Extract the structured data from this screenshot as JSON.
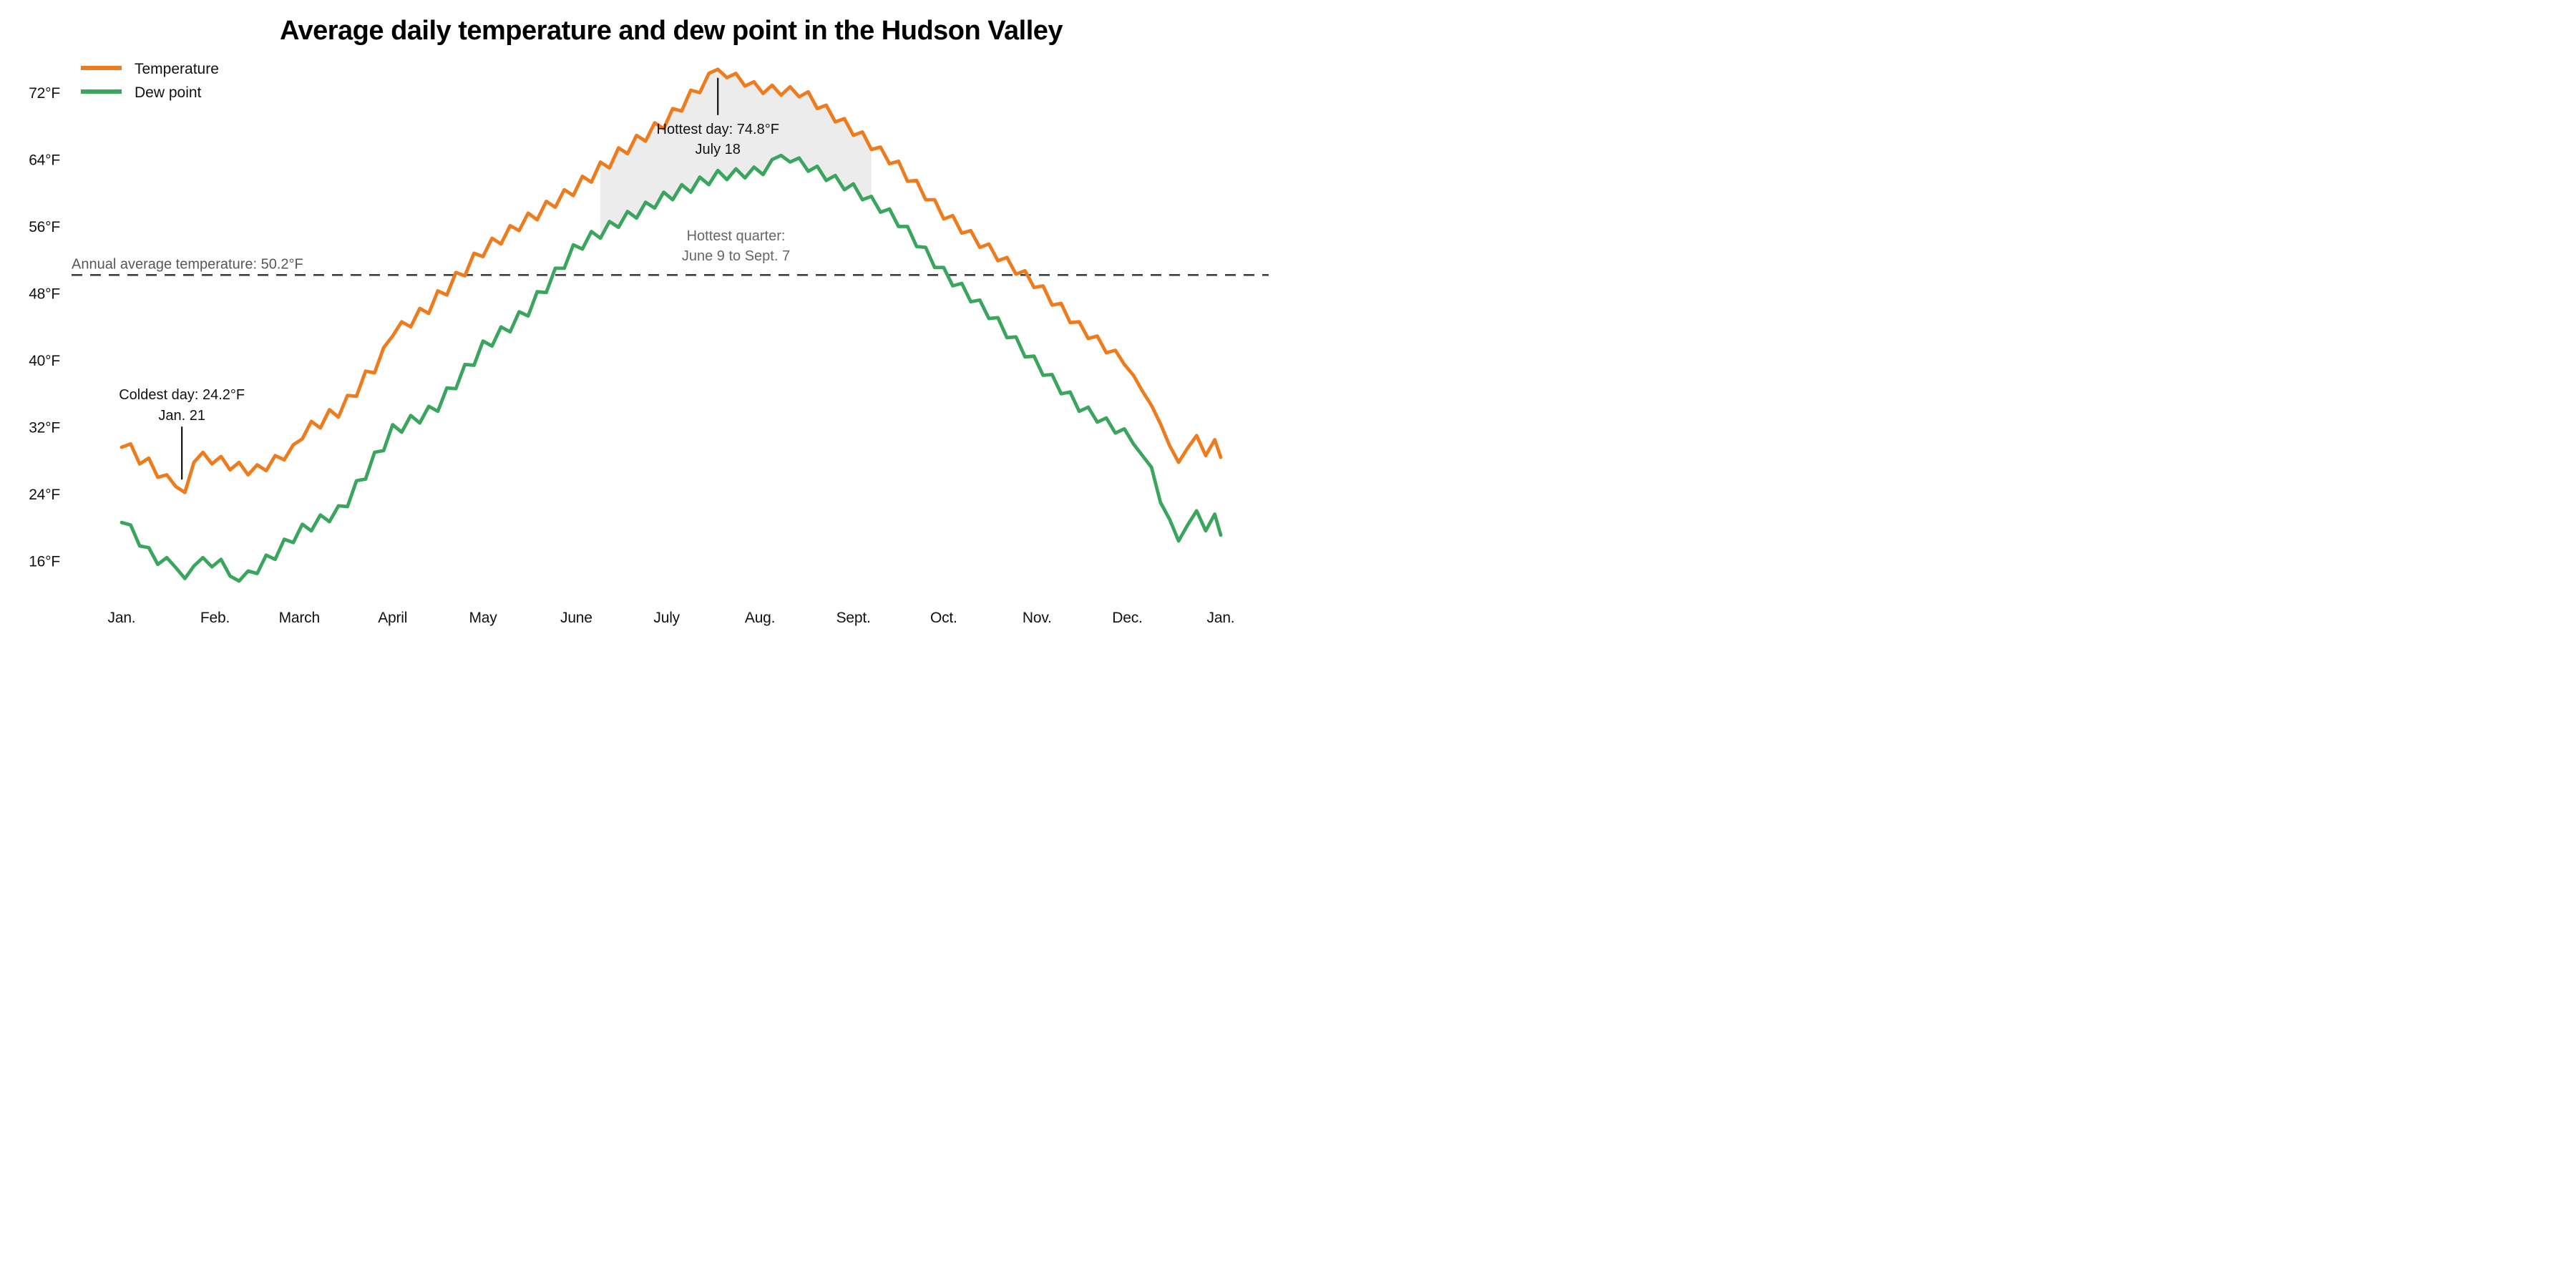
{
  "title": "Average daily temperature and dew point in the Hudson Valley",
  "legend": {
    "temperature": {
      "label": "Temperature",
      "color": "#ee7c1e"
    },
    "dew_point": {
      "label": "Dew point",
      "color": "#3aa55c"
    }
  },
  "colors": {
    "temperature": "#ee7c1e",
    "dew_point": "#3aa55c",
    "shading": "#ececec",
    "average_line": "#3f3f3f",
    "callout_line": "#111111",
    "axis_text": "#111111",
    "gray_text": "#666666"
  },
  "y_axis": {
    "ticks": [
      {
        "value": 16,
        "label": "16°F"
      },
      {
        "value": 24,
        "label": "24°F"
      },
      {
        "value": 32,
        "label": "32°F"
      },
      {
        "value": 40,
        "label": "40°F"
      },
      {
        "value": 48,
        "label": "48°F"
      },
      {
        "value": 56,
        "label": "56°F"
      },
      {
        "value": 64,
        "label": "64°F"
      },
      {
        "value": 72,
        "label": "72°F"
      }
    ]
  },
  "x_axis": {
    "labels": [
      "Jan.",
      "Feb.",
      "March",
      "April",
      "May",
      "June",
      "July",
      "Aug.",
      "Sept.",
      "Oct.",
      "Nov.",
      "Dec.",
      "Jan."
    ],
    "month_tick_days": [
      0,
      31,
      59,
      90,
      120,
      151,
      181,
      212,
      243,
      273,
      304,
      334,
      365
    ]
  },
  "annotations": {
    "hottest_day": {
      "line1": "Hottest day: 74.8°F",
      "line2": "July 18",
      "day": 198,
      "value": 74.8
    },
    "coldest_day": {
      "line1": "Coldest day: 24.2°F",
      "line2": "Jan. 21",
      "day": 20,
      "value": 24.2
    },
    "annual_average": {
      "label": "Annual average temperature: 50.2°F",
      "value": 50.2
    },
    "hottest_quarter": {
      "line1": "Hottest quarter:",
      "line2": "June 9 to Sept. 7",
      "start_day": 159,
      "end_day": 249
    }
  },
  "chart_data": {
    "type": "line",
    "x_unit": "day_of_year",
    "sample_step_days": 3,
    "x_range_days": [
      0,
      365
    ],
    "ylim": [
      12,
      77
    ],
    "grid": false,
    "legend_position": "top-left",
    "series": [
      {
        "name": "Temperature",
        "color": "#ee7c1e",
        "values": [
          29.6,
          30.0,
          27.6,
          28.3,
          26.0,
          26.3,
          24.9,
          24.2,
          27.8,
          29.0,
          27.6,
          28.5,
          26.9,
          27.8,
          26.3,
          27.5,
          26.8,
          28.6,
          28.1,
          29.9,
          30.6,
          32.7,
          31.9,
          34.1,
          33.2,
          35.8,
          35.7,
          38.7,
          38.5,
          41.5,
          42.9,
          44.6,
          44.0,
          46.2,
          45.6,
          48.3,
          47.8,
          50.5,
          50.1,
          52.8,
          52.4,
          54.6,
          53.9,
          56.1,
          55.5,
          57.6,
          56.8,
          59.0,
          58.3,
          60.4,
          59.7,
          62.0,
          61.3,
          63.7,
          63.0,
          65.4,
          64.7,
          66.9,
          66.2,
          68.4,
          67.7,
          70.1,
          69.8,
          72.3,
          72.0,
          74.3,
          74.8,
          73.8,
          74.3,
          72.8,
          73.3,
          71.9,
          72.9,
          71.7,
          72.7,
          71.5,
          72.1,
          70.1,
          70.5,
          68.5,
          68.9,
          66.9,
          67.3,
          65.2,
          65.5,
          63.5,
          63.8,
          61.4,
          61.5,
          59.2,
          59.2,
          56.9,
          57.3,
          55.2,
          55.5,
          53.5,
          53.9,
          51.9,
          52.3,
          50.3,
          50.7,
          48.7,
          48.9,
          46.6,
          46.8,
          44.5,
          44.6,
          42.6,
          42.9,
          40.9,
          41.2,
          39.5,
          38.2,
          36.3,
          34.6,
          32.4,
          29.8,
          27.8,
          29.5,
          31.0,
          28.6,
          30.5,
          28.4
        ]
      },
      {
        "name": "Dew point",
        "color": "#3aa55c",
        "values": [
          20.6,
          20.3,
          17.8,
          17.6,
          15.6,
          16.4,
          15.2,
          13.9,
          15.4,
          16.4,
          15.3,
          16.2,
          14.2,
          13.6,
          14.8,
          14.5,
          16.7,
          16.2,
          18.6,
          18.2,
          20.4,
          19.6,
          21.5,
          20.7,
          22.6,
          22.5,
          25.6,
          25.8,
          29.0,
          29.2,
          32.3,
          31.4,
          33.4,
          32.5,
          34.5,
          33.9,
          36.7,
          36.6,
          39.5,
          39.4,
          42.3,
          41.7,
          44.0,
          43.4,
          45.8,
          45.3,
          48.2,
          48.1,
          51.0,
          51.0,
          53.8,
          53.3,
          55.4,
          54.6,
          56.6,
          55.9,
          57.8,
          57.0,
          58.9,
          58.2,
          60.1,
          59.2,
          61.0,
          60.1,
          61.9,
          61.0,
          62.7,
          61.6,
          62.9,
          61.8,
          63.1,
          62.2,
          64.0,
          64.5,
          63.7,
          64.2,
          62.6,
          63.2,
          61.5,
          62.1,
          60.4,
          61.1,
          59.2,
          59.6,
          57.7,
          58.1,
          56.0,
          56.0,
          53.6,
          53.5,
          51.1,
          51.1,
          48.9,
          49.2,
          47.0,
          47.2,
          45.0,
          45.1,
          42.7,
          42.8,
          40.4,
          40.5,
          38.2,
          38.3,
          36.0,
          36.2,
          33.9,
          34.4,
          32.6,
          33.1,
          31.3,
          31.8,
          30.0,
          28.6,
          27.2,
          23.0,
          21.0,
          18.4,
          20.3,
          22.0,
          19.6,
          21.6,
          19.1
        ]
      }
    ],
    "annotated_points": {
      "hottest_day": {
        "day": 198,
        "value": 74.8
      },
      "coldest_day": {
        "day": 20,
        "value": 24.2
      },
      "annual_average_temperature": 50.2
    }
  }
}
